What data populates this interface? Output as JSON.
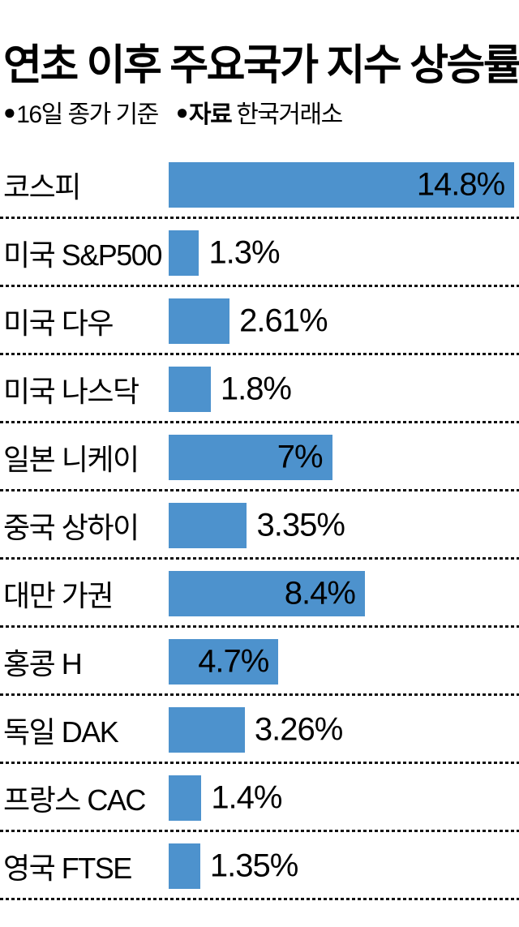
{
  "header": {
    "title": "연초 이후 주요국가 지수 상승률",
    "legend": [
      {
        "bullet": "●",
        "bold": "",
        "text": "16일 종가 기준"
      },
      {
        "bullet": "●",
        "bold": "자료",
        "text": "한국거래소"
      }
    ]
  },
  "chart_data": {
    "type": "bar",
    "orientation": "horizontal",
    "title": "연초 이후 주요국가 지수 상승률",
    "note": "16일 종가 기준",
    "source": "한국거래소",
    "unit": "%",
    "value_axis_visible": false,
    "xlim": [
      0,
      15
    ],
    "bar_color": "#4d92cd",
    "separator_style": "dashed",
    "categories": [
      "코스피",
      "미국 S&P500",
      "미국 다우",
      "미국 나스닥",
      "일본 니케이",
      "중국 상하이",
      "대만 가권",
      "홍콩 H",
      "독일 DAK",
      "프랑스 CAC",
      "영국 FTSE"
    ],
    "values": [
      14.8,
      1.3,
      2.61,
      1.8,
      7,
      3.35,
      8.4,
      4.7,
      3.26,
      1.4,
      1.35
    ],
    "value_labels": [
      "14.8%",
      "1.3%",
      "2.61%",
      "1.8%",
      "7%",
      "3.35%",
      "8.4%",
      "4.7%",
      "3.26%",
      "1.4%",
      "1.35%"
    ],
    "label_position": [
      "inside",
      "outside",
      "outside",
      "outside",
      "inside",
      "outside",
      "inside",
      "inside",
      "outside",
      "outside",
      "outside"
    ]
  }
}
